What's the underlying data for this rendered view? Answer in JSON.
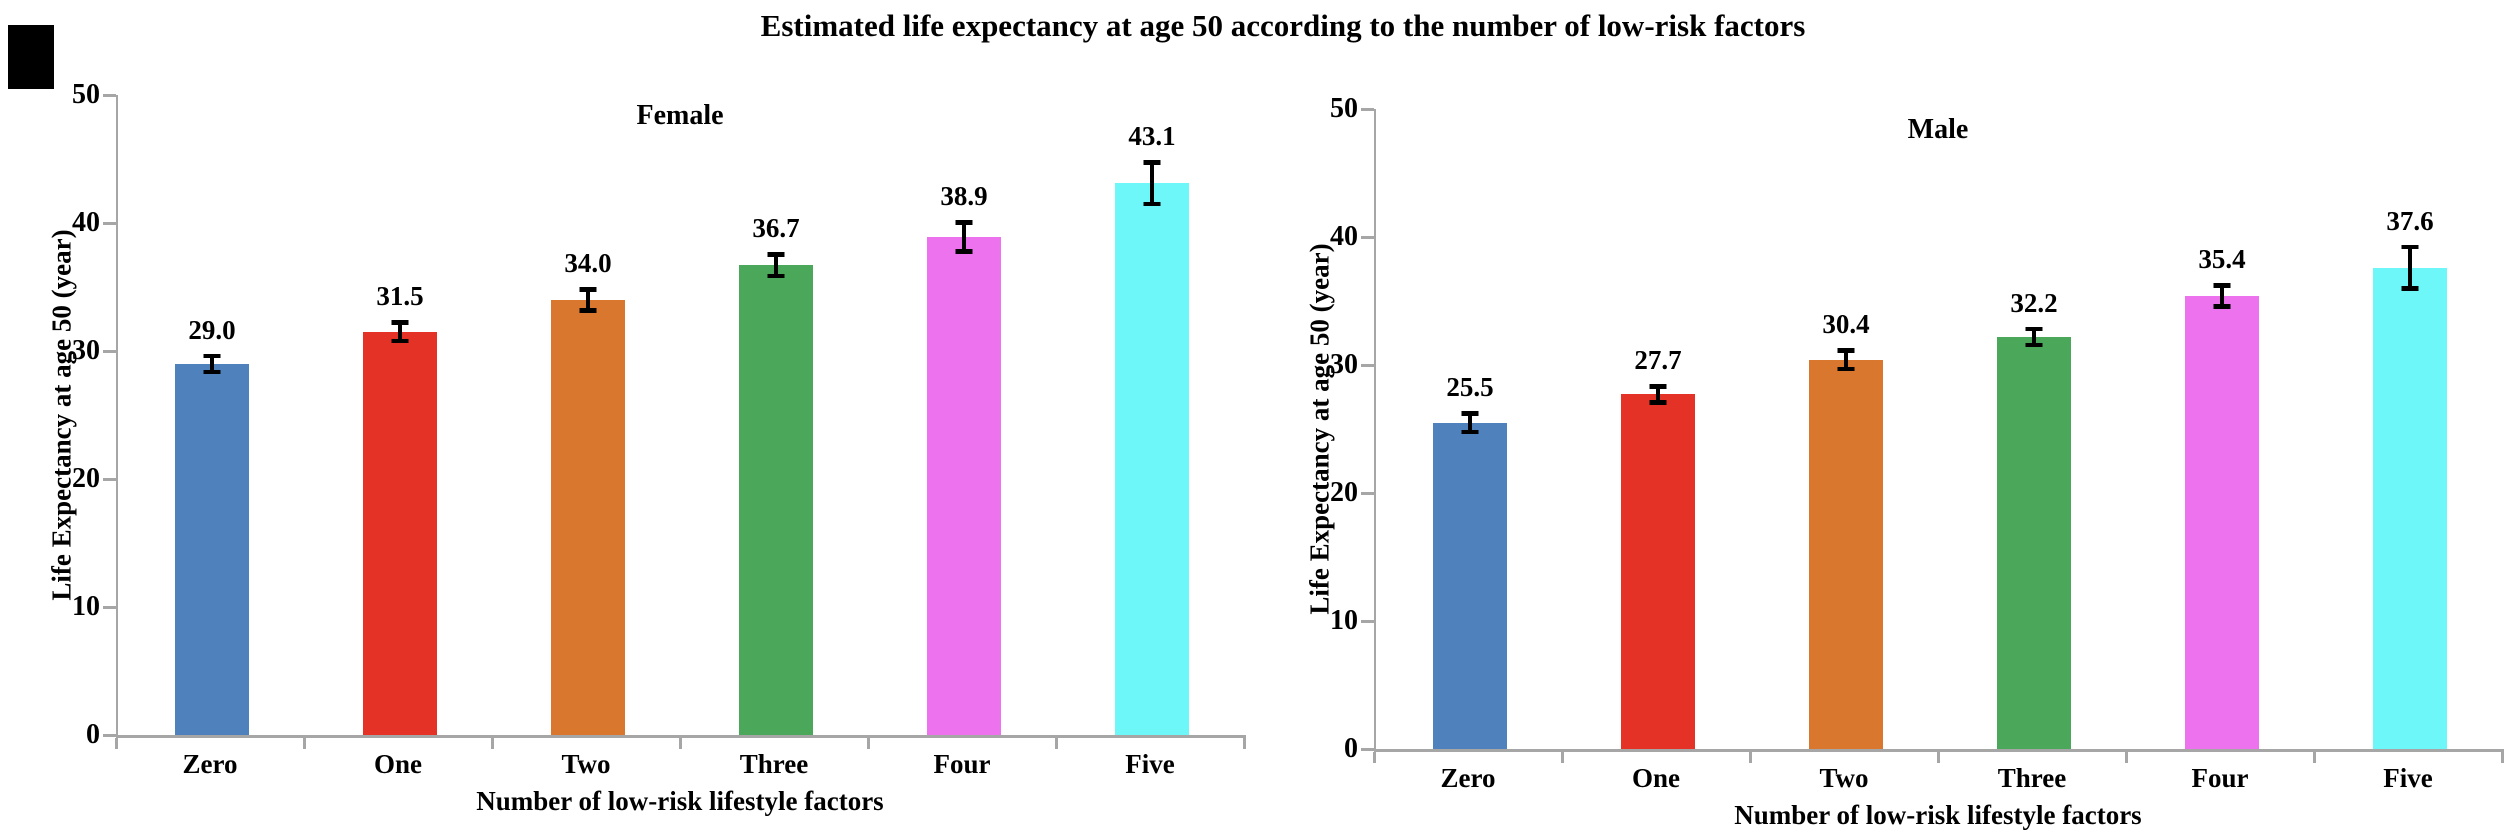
{
  "page": {
    "title": "Estimated life expectancy at age 50 according to the number of low-risk factors"
  },
  "style_colors": {
    "axis": "#a6a6a6",
    "text": "#000000",
    "error_bar": "#000000",
    "redaction_box": "#000000"
  },
  "chart_data": [
    {
      "type": "bar",
      "title": "Female",
      "xlabel": "Number of low-risk lifestyle factors",
      "ylabel": "Life Expectancy at age 50 (year)",
      "ylim": [
        0,
        50
      ],
      "yticks": [
        0,
        10,
        20,
        30,
        40,
        50
      ],
      "grid": false,
      "legend": "none",
      "categories": [
        "Zero",
        "One",
        "Two",
        "Three",
        "Four",
        "Five"
      ],
      "values": [
        29.0,
        31.5,
        34.0,
        36.7,
        38.9,
        43.1
      ],
      "value_labels": [
        "29.0",
        "31.5",
        "34.0",
        "36.7",
        "38.9",
        "43.1"
      ],
      "error_bars": [
        0.8,
        0.9,
        1.0,
        1.0,
        1.3,
        1.8
      ],
      "bar_colors": [
        "#4f81bd",
        "#e53227",
        "#d9772e",
        "#4ba85b",
        "#ec72ee",
        "#6ef7f9"
      ]
    },
    {
      "type": "bar",
      "title": "Male",
      "xlabel": "Number of low-risk lifestyle factors",
      "ylabel": "Life Expectancy at age 50 (year)",
      "ylim": [
        0,
        50
      ],
      "yticks": [
        0,
        10,
        20,
        30,
        40,
        50
      ],
      "grid": false,
      "legend": "none",
      "categories": [
        "Zero",
        "One",
        "Two",
        "Three",
        "Four",
        "Five"
      ],
      "values": [
        25.5,
        27.7,
        30.4,
        32.2,
        35.4,
        37.6
      ],
      "value_labels": [
        "25.5",
        "27.7",
        "30.4",
        "32.2",
        "35.4",
        "37.6"
      ],
      "error_bars": [
        0.9,
        0.8,
        0.9,
        0.8,
        1.0,
        1.8
      ],
      "bar_colors": [
        "#4f81bd",
        "#e53227",
        "#d9772e",
        "#4ba85b",
        "#ec72ee",
        "#6ef7f9"
      ]
    }
  ]
}
